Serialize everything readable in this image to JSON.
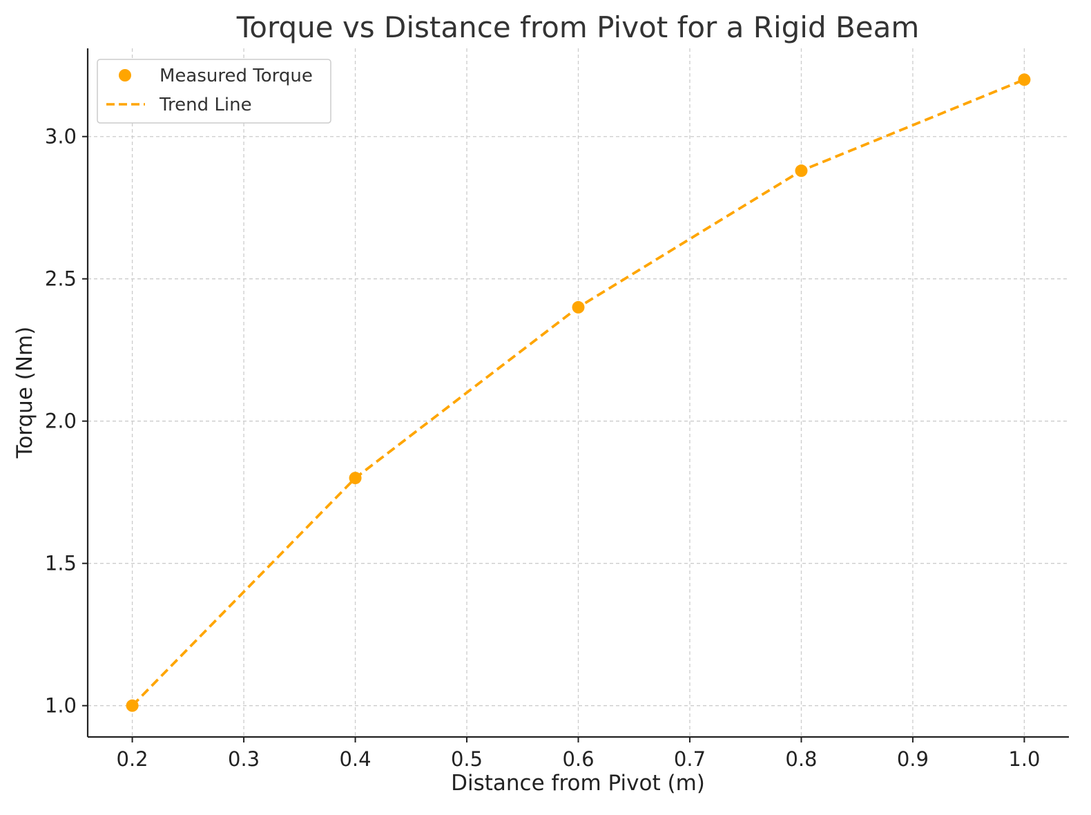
{
  "chart_data": {
    "type": "line",
    "title": "Torque vs Distance from Pivot for a Rigid Beam",
    "xlabel": "Distance from Pivot (m)",
    "ylabel": "Torque (Nm)",
    "xlim": [
      0.16,
      1.04
    ],
    "ylim": [
      0.89,
      3.31
    ],
    "xticks": [
      0.2,
      0.3,
      0.4,
      0.5,
      0.6,
      0.7,
      0.8,
      0.9,
      1.0
    ],
    "xtick_labels": [
      "0.2",
      "0.3",
      "0.4",
      "0.5",
      "0.6",
      "0.7",
      "0.8",
      "0.9",
      "1.0"
    ],
    "yticks": [
      1.0,
      1.5,
      2.0,
      2.5,
      3.0
    ],
    "ytick_labels": [
      "1.0",
      "1.5",
      "2.0",
      "2.5",
      "3.0"
    ],
    "grid": true,
    "legend_position": "top-left",
    "series": [
      {
        "name": "Measured Torque",
        "kind": "scatter",
        "color": "#FFA500",
        "x": [
          0.2,
          0.4,
          0.6,
          0.8,
          1.0
        ],
        "y": [
          1.0,
          1.8,
          2.4,
          2.88,
          3.2
        ]
      },
      {
        "name": "Trend Line",
        "kind": "dashed-line",
        "color": "#FFA500",
        "x": [
          0.2,
          0.4,
          0.6,
          0.8,
          1.0
        ],
        "y": [
          1.0,
          1.8,
          2.4,
          2.88,
          3.2
        ]
      }
    ]
  }
}
